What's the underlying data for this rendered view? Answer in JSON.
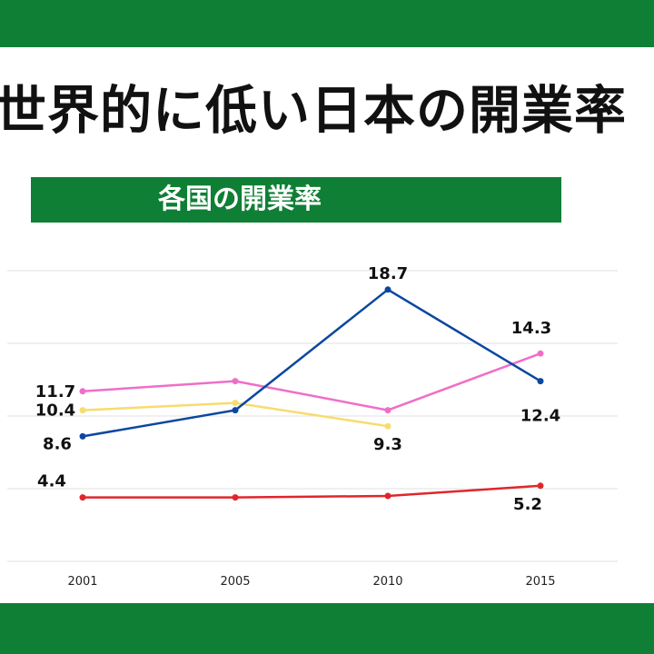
{
  "title": "世界的に低い日本の開業率",
  "subtitle": "各国の開業率",
  "colors": {
    "band": "#0f7f35",
    "grid": "#e2e2e2"
  },
  "chart_data": {
    "type": "line",
    "x": [
      "2001",
      "2005",
      "2010",
      "2015"
    ],
    "ylim": [
      0,
      20
    ],
    "grid": true,
    "series": [
      {
        "color": "#f06ec8",
        "values": [
          11.7,
          12.4,
          10.4,
          14.3
        ],
        "labels": {
          "0": "11.7",
          "3": "14.3"
        }
      },
      {
        "color": "#f7dc6f",
        "values": [
          10.4,
          10.9,
          9.3,
          null
        ],
        "labels": {
          "0": "10.4",
          "2": "9.3"
        }
      },
      {
        "color": "#0a47a0",
        "values": [
          8.6,
          10.4,
          18.7,
          12.4
        ],
        "labels": {
          "0": "8.6",
          "2": "18.7",
          "3": "12.4"
        }
      },
      {
        "color": "#e0262b",
        "values": [
          4.4,
          4.4,
          4.5,
          5.2
        ],
        "labels": {
          "0": "4.4",
          "3": "5.2"
        }
      }
    ]
  }
}
